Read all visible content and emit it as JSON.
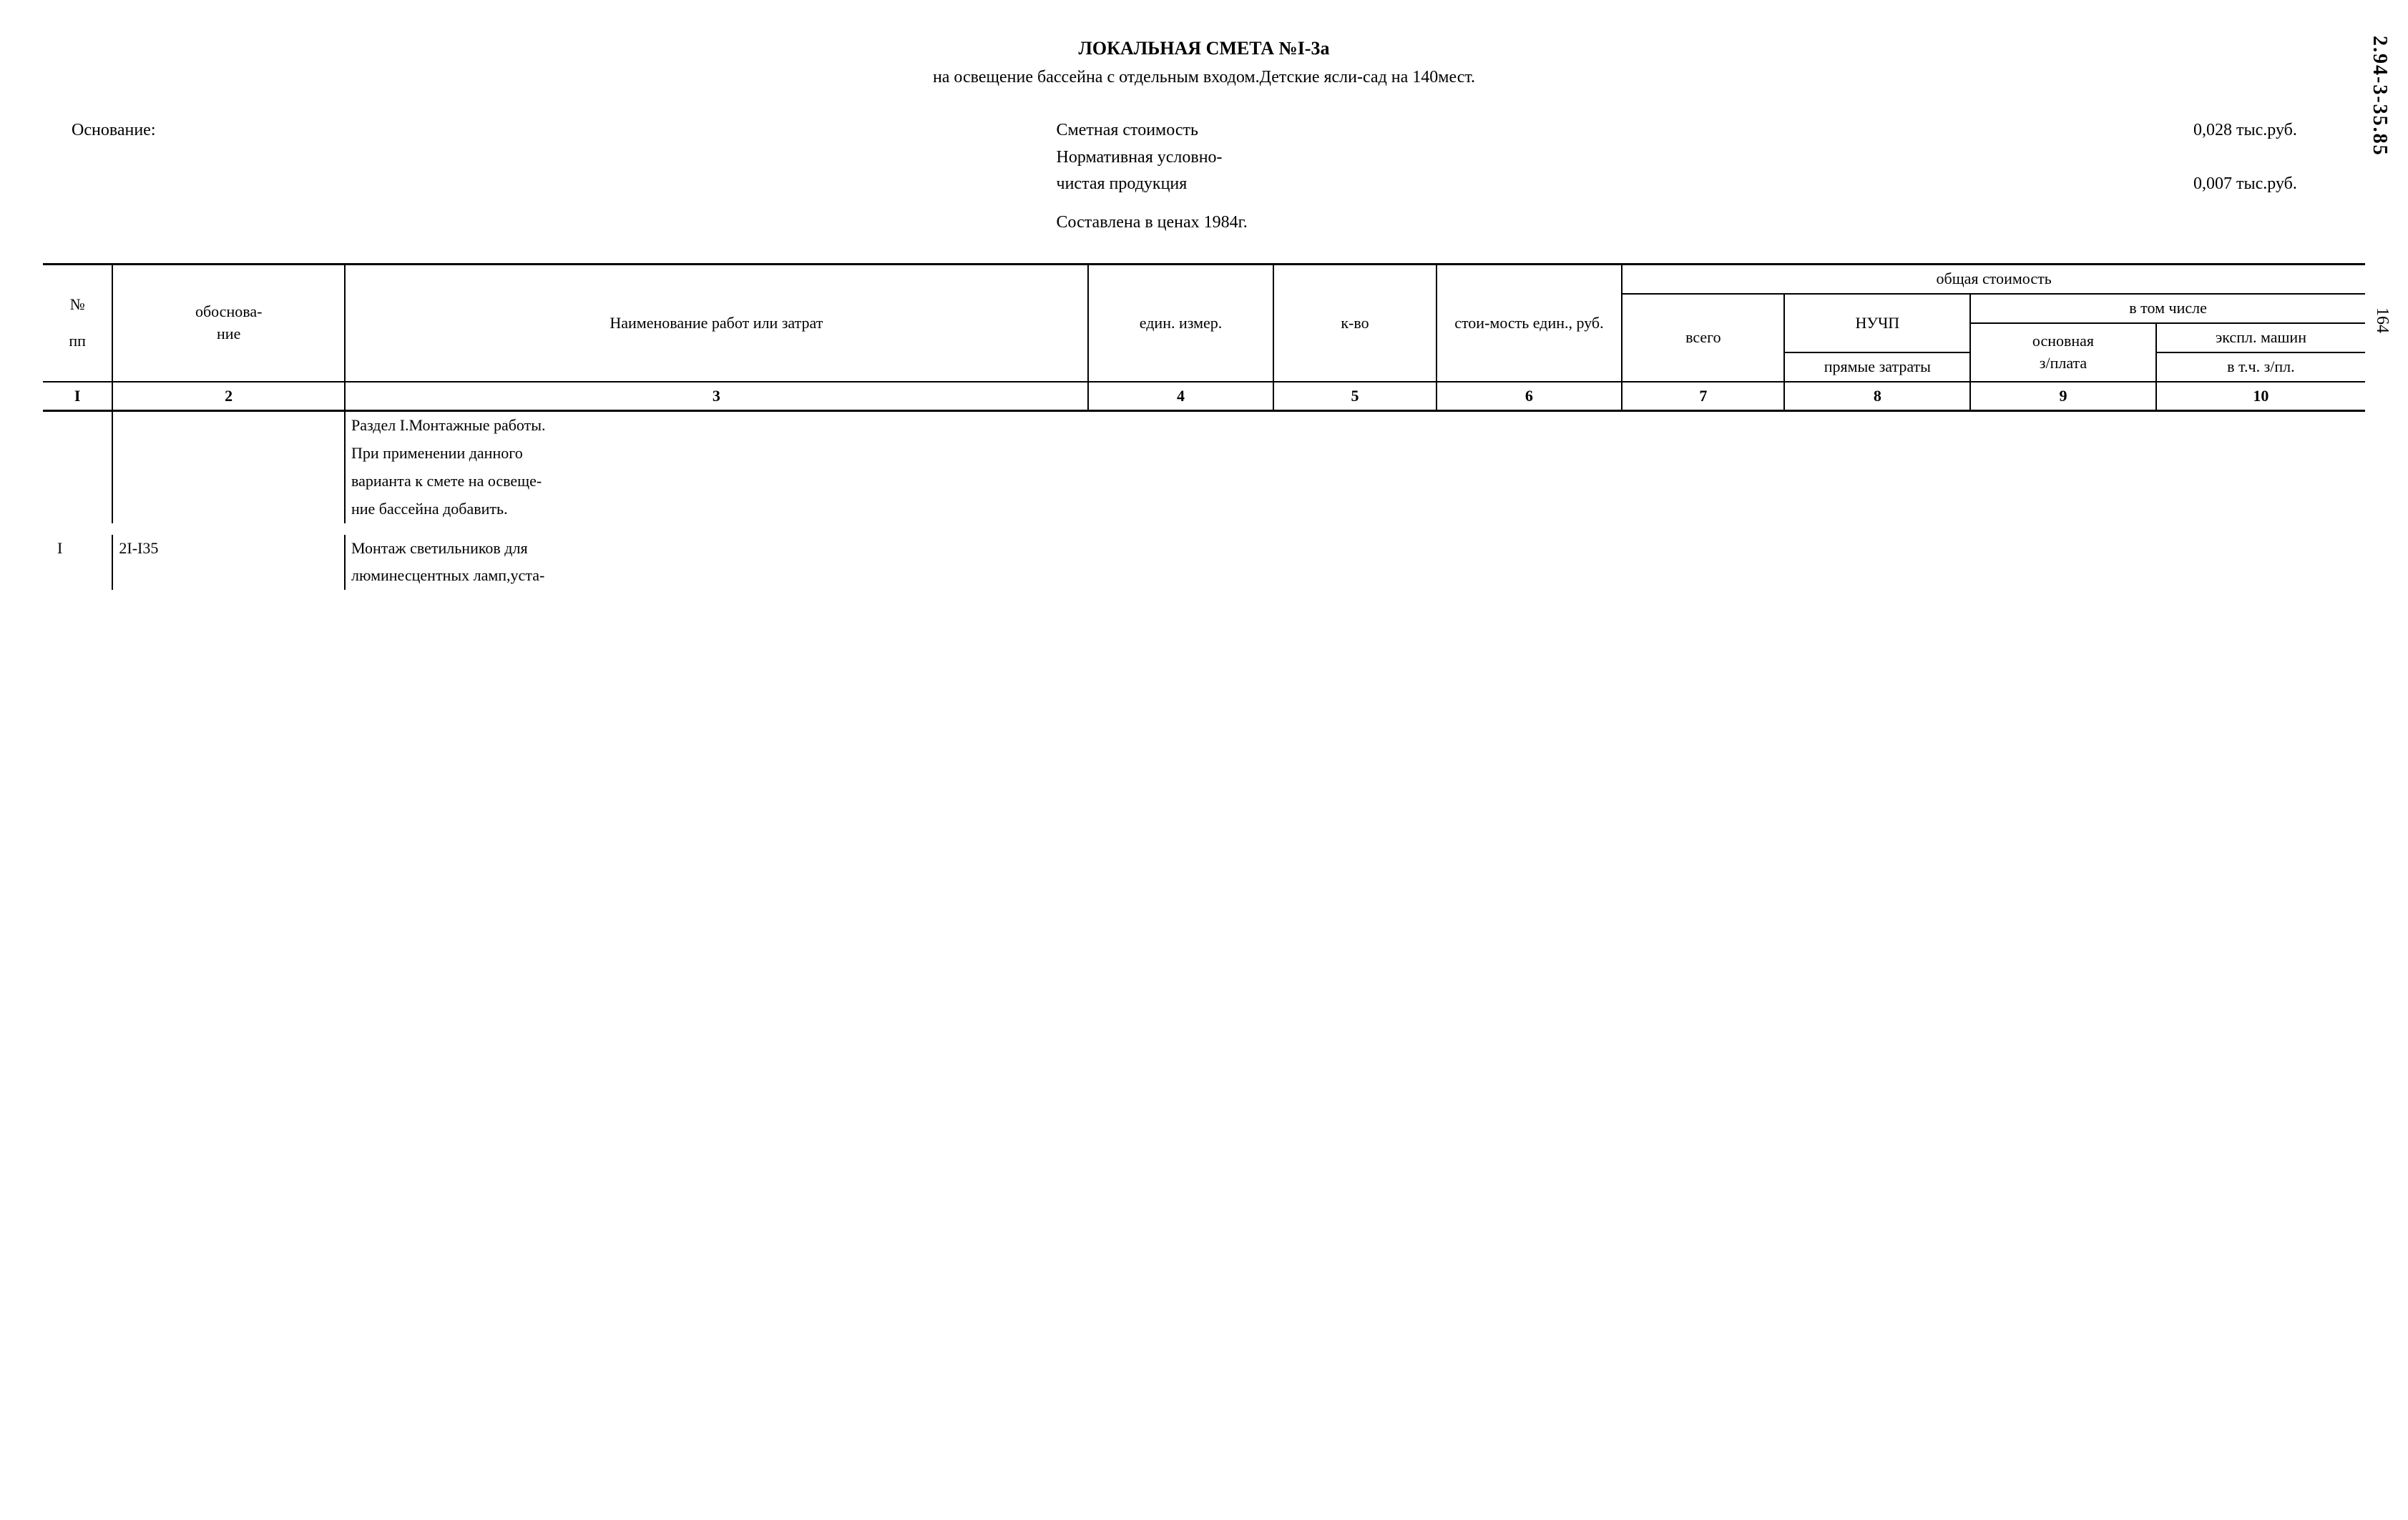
{
  "side_label": "2.94-3-35.85",
  "page_number": "164",
  "header": {
    "title": "ЛОКАЛЬНАЯ СМЕТА №I-3а",
    "subtitle": "на освещение бассейна с отдельным входом.Детские ясли-сад на 140мест."
  },
  "meta": {
    "basis_label": "Основание:",
    "cost_label": "Сметная стоимость",
    "cost_value": "0,028 тыс.руб.",
    "norm_label1": "Нормативная условно-",
    "norm_label2": "чистая продукция",
    "norm_value": "0,007 тыс.руб.",
    "compiled": "Составлена в ценах 1984г."
  },
  "table": {
    "headers": {
      "col1a": "№",
      "col1b": "пп",
      "col2a": "обоснова-",
      "col2b": "ние",
      "col3": "Наименование работ или затрат",
      "col4": "един. измер.",
      "col5": "к-во",
      "col6": "стои-мость един., руб.",
      "col_total": "общая стоимость",
      "col7": "всего",
      "col8a": "НУЧП",
      "col8b": "прямые затраты",
      "col_incl": "в том числе",
      "col9a": "основная",
      "col9b": "з/плата",
      "col10a": "экспл. машин",
      "col10b": "в т.ч. з/пл."
    },
    "numbers": [
      "I",
      "2",
      "3",
      "4",
      "5",
      "6",
      "7",
      "8",
      "9",
      "10"
    ],
    "rows": [
      {
        "num": "",
        "code": "",
        "name_lines": [
          "Раздел I.Монтажные работы.",
          "При применении данного",
          "варианта к смете на освеще-",
          "ние бассейна добавить."
        ]
      },
      {
        "num": "I",
        "code": "2I-I35",
        "name_lines": [
          "Монтаж светильников для",
          "люминесцентных ламп,уста-"
        ]
      }
    ]
  },
  "styling": {
    "bg": "#ffffff",
    "text": "#000000",
    "border": "#000000",
    "font_family": "Times New Roman, serif",
    "body_fontsize": 24,
    "title_fontsize": 26,
    "table_fontsize": 22
  },
  "col_widths": {
    "c1": "3%",
    "c2": "10%",
    "c3": "32%",
    "c4": "8%",
    "c5": "7%",
    "c6": "8%",
    "c7": "7%",
    "c8": "8%",
    "c9": "8%",
    "c10": "9%"
  }
}
